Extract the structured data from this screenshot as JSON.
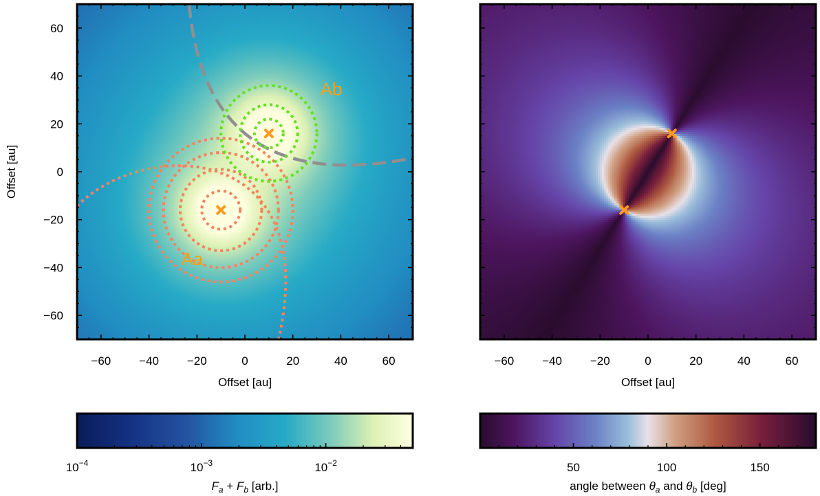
{
  "chart_data": [
    {
      "type": "heatmap",
      "panel": "left",
      "xlabel": "Offset [au]",
      "ylabel": "Offset [au]",
      "xlim": [
        -70,
        70
      ],
      "ylim": [
        -70,
        70
      ],
      "xticks": [
        -60,
        -40,
        -20,
        0,
        20,
        40,
        60
      ],
      "yticks": [
        -60,
        -40,
        -20,
        0,
        20,
        40,
        60
      ],
      "xtick_labels": [
        "−60",
        "−40",
        "−20",
        "0",
        "20",
        "40",
        "60"
      ],
      "ytick_labels": [
        "−60",
        "−40",
        "−20",
        "0",
        "20",
        "40",
        "60"
      ],
      "stars": [
        {
          "label": "Aa",
          "x": -10,
          "y": -16,
          "label_x": -22,
          "label_y": -37
        },
        {
          "label": "Ab",
          "x": 10,
          "y": 16,
          "label_x": 36,
          "label_y": 34
        }
      ],
      "contours": [
        {
          "star": "Aa",
          "radii": [
            8,
            17,
            24,
            30
          ],
          "color": "#f4845f"
        },
        {
          "star": "Ab",
          "radii": [
            6,
            12,
            20
          ],
          "color": "#66e022"
        }
      ],
      "colorbar": {
        "label": "F_a + F_b [arb.]",
        "scale": "log",
        "range": [
          0.0001,
          0.05
        ],
        "major_ticks": [
          0.0001,
          0.001,
          0.01
        ],
        "tick_labels": [
          "10",
          "10",
          "10"
        ],
        "tick_exponents": [
          "−4",
          "−3",
          "−2"
        ],
        "colormap": "YlGnBu_r"
      }
    },
    {
      "type": "heatmap",
      "panel": "right",
      "xlabel": "Offset [au]",
      "ylabel": "",
      "xlim": [
        -70,
        70
      ],
      "ylim": [
        -70,
        70
      ],
      "xticks": [
        -60,
        -40,
        -20,
        0,
        20,
        40,
        60
      ],
      "xtick_labels": [
        "−60",
        "−40",
        "−20",
        "0",
        "20",
        "40",
        "60"
      ],
      "stars": [
        {
          "x": -10,
          "y": -16
        },
        {
          "x": 10,
          "y": 16
        }
      ],
      "colorbar": {
        "label_prefix": "angle between ",
        "label_theta": "θ",
        "label_sub_a": "a",
        "label_and": " and ",
        "label_sub_b": "b",
        "label_suffix": " [deg]",
        "range": [
          0,
          180
        ],
        "major_ticks": [
          50,
          100,
          150
        ],
        "tick_labels": [
          "50",
          "100",
          "150"
        ],
        "colormap": "twilight_shifted"
      }
    }
  ],
  "labels": {
    "left_cbar_F": "F",
    "left_cbar_a": "a",
    "left_cbar_plus": " + ",
    "left_cbar_b": "b",
    "left_cbar_unit": " [arb.]"
  },
  "colors": {
    "star_marker": "#ff9a1f",
    "star_label": "#f5a01a",
    "gray_arc": "#909090",
    "orange_contour": "#f4845f",
    "green_contour": "#66e022"
  }
}
